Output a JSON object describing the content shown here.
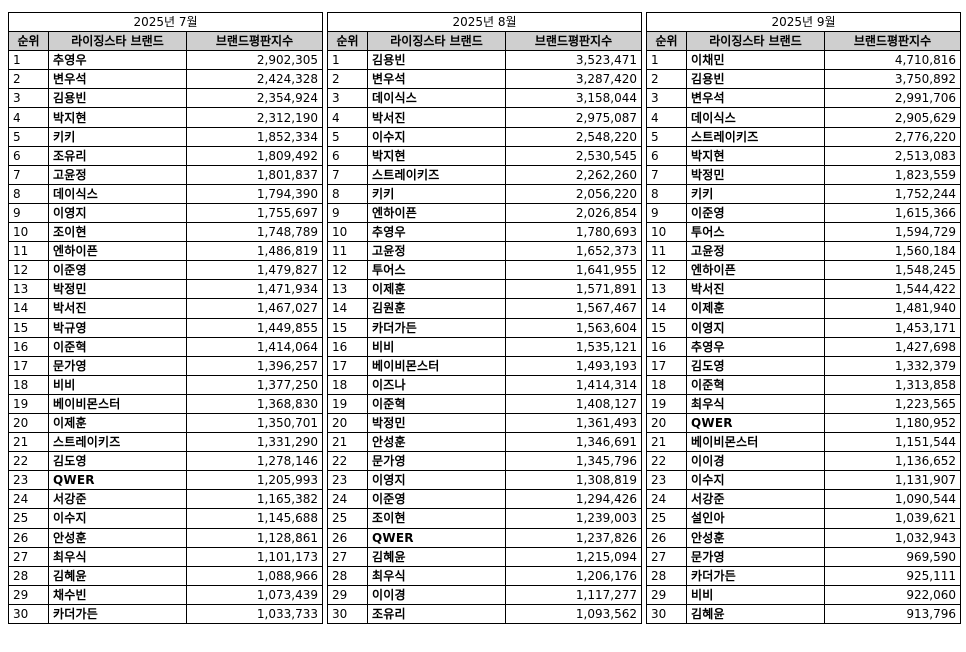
{
  "headers": {
    "rank": "순위",
    "brand": "라이징스타 브랜드",
    "score": "브랜드평판지수"
  },
  "months": [
    {
      "title": "2025년 7월",
      "rows": [
        {
          "rank": "1",
          "brand": "추영우",
          "score": "2,902,305"
        },
        {
          "rank": "2",
          "brand": "변우석",
          "score": "2,424,328"
        },
        {
          "rank": "3",
          "brand": "김용빈",
          "score": "2,354,924"
        },
        {
          "rank": "4",
          "brand": "박지현",
          "score": "2,312,190"
        },
        {
          "rank": "5",
          "brand": "키키",
          "score": "1,852,334"
        },
        {
          "rank": "6",
          "brand": "조유리",
          "score": "1,809,492"
        },
        {
          "rank": "7",
          "brand": "고윤정",
          "score": "1,801,837"
        },
        {
          "rank": "8",
          "brand": "데이식스",
          "score": "1,794,390"
        },
        {
          "rank": "9",
          "brand": "이영지",
          "score": "1,755,697"
        },
        {
          "rank": "10",
          "brand": "조이현",
          "score": "1,748,789"
        },
        {
          "rank": "11",
          "brand": "엔하이픈",
          "score": "1,486,819"
        },
        {
          "rank": "12",
          "brand": "이준영",
          "score": "1,479,827"
        },
        {
          "rank": "13",
          "brand": "박정민",
          "score": "1,471,934"
        },
        {
          "rank": "14",
          "brand": "박서진",
          "score": "1,467,027"
        },
        {
          "rank": "15",
          "brand": "박규영",
          "score": "1,449,855"
        },
        {
          "rank": "16",
          "brand": "이준혁",
          "score": "1,414,064"
        },
        {
          "rank": "17",
          "brand": "문가영",
          "score": "1,396,257"
        },
        {
          "rank": "18",
          "brand": "비비",
          "score": "1,377,250"
        },
        {
          "rank": "19",
          "brand": "베이비몬스터",
          "score": "1,368,830"
        },
        {
          "rank": "20",
          "brand": "이제훈",
          "score": "1,350,701"
        },
        {
          "rank": "21",
          "brand": "스트레이키즈",
          "score": "1,331,290"
        },
        {
          "rank": "22",
          "brand": "김도영",
          "score": "1,278,146"
        },
        {
          "rank": "23",
          "brand": "QWER",
          "score": "1,205,993"
        },
        {
          "rank": "24",
          "brand": "서강준",
          "score": "1,165,382"
        },
        {
          "rank": "25",
          "brand": "이수지",
          "score": "1,145,688"
        },
        {
          "rank": "26",
          "brand": "안성훈",
          "score": "1,128,861"
        },
        {
          "rank": "27",
          "brand": "최우식",
          "score": "1,101,173"
        },
        {
          "rank": "28",
          "brand": "김혜윤",
          "score": "1,088,966"
        },
        {
          "rank": "29",
          "brand": "채수빈",
          "score": "1,073,439"
        },
        {
          "rank": "30",
          "brand": "카더가든",
          "score": "1,033,733"
        }
      ]
    },
    {
      "title": "2025년 8월",
      "rows": [
        {
          "rank": "1",
          "brand": "김용빈",
          "score": "3,523,471"
        },
        {
          "rank": "2",
          "brand": "변우석",
          "score": "3,287,420"
        },
        {
          "rank": "3",
          "brand": "데이식스",
          "score": "3,158,044"
        },
        {
          "rank": "4",
          "brand": "박서진",
          "score": "2,975,087"
        },
        {
          "rank": "5",
          "brand": "이수지",
          "score": "2,548,220"
        },
        {
          "rank": "6",
          "brand": "박지현",
          "score": "2,530,545"
        },
        {
          "rank": "7",
          "brand": "스트레이키즈",
          "score": "2,262,260"
        },
        {
          "rank": "8",
          "brand": "키키",
          "score": "2,056,220"
        },
        {
          "rank": "9",
          "brand": "엔하이픈",
          "score": "2,026,854"
        },
        {
          "rank": "10",
          "brand": "추영우",
          "score": "1,780,693"
        },
        {
          "rank": "11",
          "brand": "고윤정",
          "score": "1,652,373"
        },
        {
          "rank": "12",
          "brand": "투어스",
          "score": "1,641,955"
        },
        {
          "rank": "13",
          "brand": "이제훈",
          "score": "1,571,891"
        },
        {
          "rank": "14",
          "brand": "김원훈",
          "score": "1,567,467"
        },
        {
          "rank": "15",
          "brand": "카더가든",
          "score": "1,563,604"
        },
        {
          "rank": "16",
          "brand": "비비",
          "score": "1,535,121"
        },
        {
          "rank": "17",
          "brand": "베이비몬스터",
          "score": "1,493,193"
        },
        {
          "rank": "18",
          "brand": "이즈나",
          "score": "1,414,314"
        },
        {
          "rank": "19",
          "brand": "이준혁",
          "score": "1,408,127"
        },
        {
          "rank": "20",
          "brand": "박정민",
          "score": "1,361,493"
        },
        {
          "rank": "21",
          "brand": "안성훈",
          "score": "1,346,691"
        },
        {
          "rank": "22",
          "brand": "문가영",
          "score": "1,345,796"
        },
        {
          "rank": "23",
          "brand": "이영지",
          "score": "1,308,819"
        },
        {
          "rank": "24",
          "brand": "이준영",
          "score": "1,294,426"
        },
        {
          "rank": "25",
          "brand": "조이현",
          "score": "1,239,003"
        },
        {
          "rank": "26",
          "brand": "QWER",
          "score": "1,237,826"
        },
        {
          "rank": "27",
          "brand": "김혜윤",
          "score": "1,215,094"
        },
        {
          "rank": "28",
          "brand": "최우식",
          "score": "1,206,176"
        },
        {
          "rank": "29",
          "brand": "이이경",
          "score": "1,117,277"
        },
        {
          "rank": "30",
          "brand": "조유리",
          "score": "1,093,562"
        }
      ]
    },
    {
      "title": "2025년 9월",
      "rows": [
        {
          "rank": "1",
          "brand": "이채민",
          "score": "4,710,816"
        },
        {
          "rank": "2",
          "brand": "김용빈",
          "score": "3,750,892"
        },
        {
          "rank": "3",
          "brand": "변우석",
          "score": "2,991,706"
        },
        {
          "rank": "4",
          "brand": "데이식스",
          "score": "2,905,629"
        },
        {
          "rank": "5",
          "brand": "스트레이키즈",
          "score": "2,776,220"
        },
        {
          "rank": "6",
          "brand": "박지현",
          "score": "2,513,083"
        },
        {
          "rank": "7",
          "brand": "박정민",
          "score": "1,823,559"
        },
        {
          "rank": "8",
          "brand": "키키",
          "score": "1,752,244"
        },
        {
          "rank": "9",
          "brand": "이준영",
          "score": "1,615,366"
        },
        {
          "rank": "10",
          "brand": "투어스",
          "score": "1,594,729"
        },
        {
          "rank": "11",
          "brand": "고윤정",
          "score": "1,560,184"
        },
        {
          "rank": "12",
          "brand": "엔하이픈",
          "score": "1,548,245"
        },
        {
          "rank": "13",
          "brand": "박서진",
          "score": "1,544,422"
        },
        {
          "rank": "14",
          "brand": "이제훈",
          "score": "1,481,940"
        },
        {
          "rank": "15",
          "brand": "이영지",
          "score": "1,453,171"
        },
        {
          "rank": "16",
          "brand": "추영우",
          "score": "1,427,698"
        },
        {
          "rank": "17",
          "brand": "김도영",
          "score": "1,332,379"
        },
        {
          "rank": "18",
          "brand": "이준혁",
          "score": "1,313,858"
        },
        {
          "rank": "19",
          "brand": "최우식",
          "score": "1,223,565"
        },
        {
          "rank": "20",
          "brand": "QWER",
          "score": "1,180,952"
        },
        {
          "rank": "21",
          "brand": "베이비몬스터",
          "score": "1,151,544"
        },
        {
          "rank": "22",
          "brand": "이이경",
          "score": "1,136,652"
        },
        {
          "rank": "23",
          "brand": "이수지",
          "score": "1,131,907"
        },
        {
          "rank": "24",
          "brand": "서강준",
          "score": "1,090,544"
        },
        {
          "rank": "25",
          "brand": "설인아",
          "score": "1,039,621"
        },
        {
          "rank": "26",
          "brand": "안성훈",
          "score": "1,032,943"
        },
        {
          "rank": "27",
          "brand": "문가영",
          "score": "969,590"
        },
        {
          "rank": "28",
          "brand": "카더가든",
          "score": "925,111"
        },
        {
          "rank": "29",
          "brand": "비비",
          "score": "922,060"
        },
        {
          "rank": "30",
          "brand": "김혜윤",
          "score": "913,796"
        }
      ]
    }
  ]
}
